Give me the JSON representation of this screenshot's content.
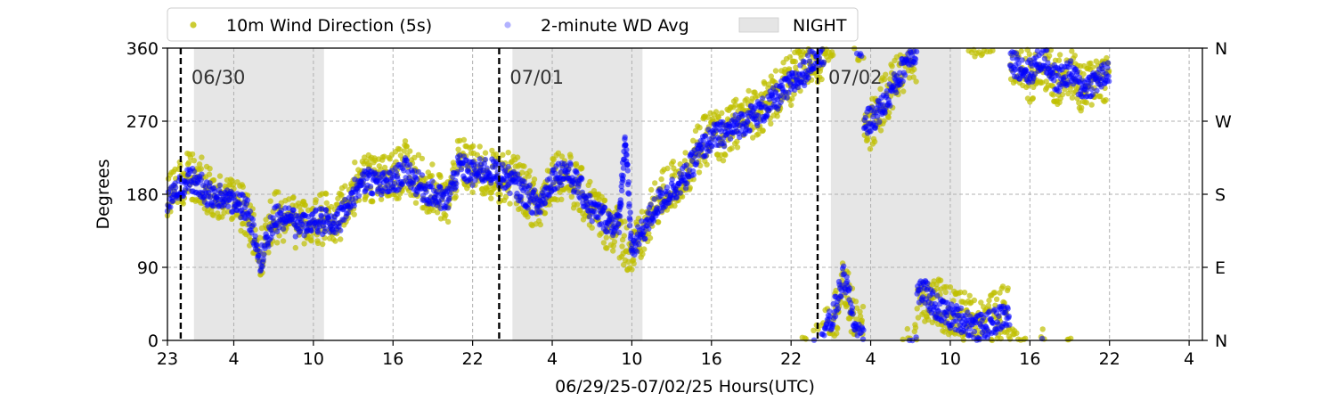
{
  "chart_data": {
    "type": "scatter",
    "xlabel": "06/29/25-07/02/25  Hours(UTC)",
    "ylabel": "Degrees",
    "x_range_hours": [
      23,
      101
    ],
    "ylim": [
      0,
      360
    ],
    "x_tick_labels": [
      "23",
      "4",
      "10",
      "16",
      "22",
      "4",
      "10",
      "16",
      "22",
      "4",
      "10",
      "16",
      "22",
      "4"
    ],
    "x_tick_hours": [
      23,
      28,
      34,
      40,
      46,
      52,
      58,
      64,
      70,
      76,
      82,
      88,
      94,
      100
    ],
    "y_ticks": [
      0,
      90,
      180,
      270,
      360
    ],
    "y_tick_labels": [
      "0",
      "90",
      "180",
      "270",
      "360"
    ],
    "right_tick_labels": [
      "N",
      "E",
      "S",
      "W",
      "N"
    ],
    "grid": true,
    "legend_placement": "top (above plot)",
    "legend": [
      {
        "label": "10m Wind Direction (5s)",
        "color": "#bfbf00",
        "marker": "dot"
      },
      {
        "label": "2-minute WD Avg",
        "color": "#0000ff",
        "marker": "dot"
      },
      {
        "label": "NIGHT",
        "color": "#e5e5e5",
        "marker": "box"
      }
    ],
    "night_shading_hours": [
      [
        25,
        34.8
      ],
      [
        49,
        58.8
      ],
      [
        73,
        82.8
      ]
    ],
    "day_boundaries": [
      {
        "hour": 24,
        "label": "06/30"
      },
      {
        "hour": 48,
        "label": "07/01"
      },
      {
        "hour": 72,
        "label": "07/02"
      }
    ],
    "series": [
      {
        "name": "2-minute WD Avg",
        "color": "#0000ff",
        "x_hours": [
          23,
          24,
          25,
          26,
          27,
          28,
          29,
          30,
          31,
          32,
          33,
          34,
          35,
          36,
          37,
          38,
          39,
          40,
          41,
          42,
          43,
          44,
          45,
          46,
          47,
          48,
          49,
          50,
          51,
          52,
          53,
          54,
          55,
          56,
          57,
          57.5,
          58,
          59,
          60,
          61,
          62,
          63,
          64,
          65,
          66,
          67,
          68,
          69,
          70,
          71,
          72,
          73,
          74,
          75,
          76,
          77,
          78,
          79,
          80,
          81,
          82,
          83,
          84,
          85,
          86,
          87,
          88,
          89,
          90,
          91,
          92,
          93,
          94
        ],
        "values": [
          170,
          190,
          200,
          180,
          175,
          170,
          165,
          95,
          150,
          150,
          140,
          150,
          145,
          150,
          180,
          200,
          190,
          195,
          210,
          190,
          180,
          170,
          215,
          205,
          210,
          205,
          195,
          180,
          165,
          200,
          210,
          190,
          160,
          150,
          140,
          250,
          110,
          140,
          170,
          185,
          200,
          230,
          250,
          255,
          265,
          275,
          285,
          300,
          315,
          330,
          355,
          20,
          80,
          5,
          270,
          290,
          320,
          355,
          60,
          40,
          30,
          25,
          15,
          20,
          30,
          340,
          330,
          350,
          320,
          330,
          310,
          320,
          330
        ]
      },
      {
        "name": "10m Wind Direction (5s)",
        "color": "#bfbf00",
        "x_hours": [
          23,
          24,
          25,
          26,
          27,
          28,
          29,
          30,
          31,
          32,
          33,
          34,
          35,
          36,
          37,
          38,
          39,
          40,
          41,
          42,
          43,
          44,
          45,
          46,
          47,
          48,
          49,
          50,
          51,
          52,
          53,
          54,
          55,
          56,
          57,
          58,
          59,
          60,
          61,
          62,
          63,
          64,
          65,
          66,
          67,
          68,
          69,
          70,
          71,
          72,
          73,
          74,
          75,
          76,
          77,
          78,
          79,
          80,
          81,
          82,
          83,
          84,
          85,
          86,
          87,
          88,
          89,
          90,
          91,
          92,
          93,
          94
        ],
        "values": [
          175,
          195,
          205,
          185,
          170,
          175,
          160,
          100,
          155,
          145,
          145,
          150,
          150,
          155,
          185,
          205,
          195,
          200,
          215,
          195,
          185,
          165,
          220,
          210,
          205,
          200,
          200,
          185,
          160,
          205,
          205,
          185,
          165,
          145,
          135,
          105,
          135,
          175,
          190,
          205,
          235,
          255,
          250,
          270,
          280,
          290,
          305,
          320,
          335,
          350,
          15,
          70,
          10,
          265,
          295,
          325,
          350,
          55,
          45,
          35,
          30,
          20,
          25,
          35,
          345,
          325,
          345,
          315,
          335,
          305,
          325,
          325
        ]
      }
    ]
  }
}
